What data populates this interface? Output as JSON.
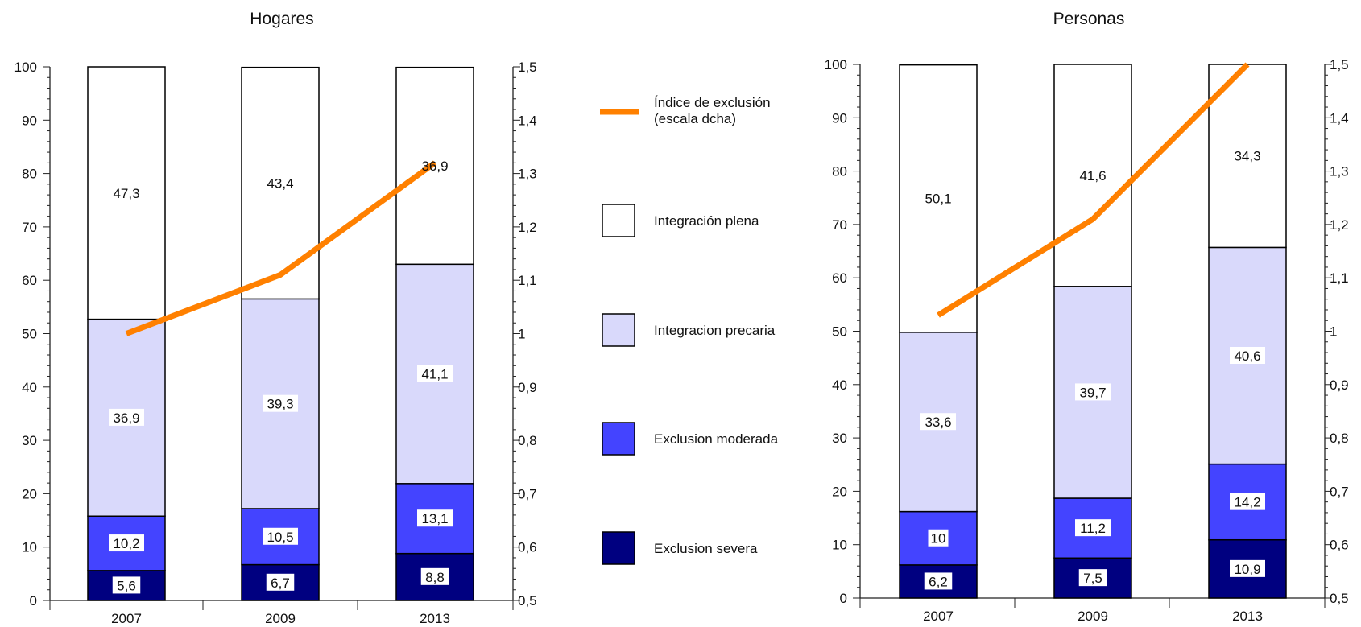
{
  "colors": {
    "integracion_plena": "#ffffff",
    "integracion_precaria": "#d9d9fb",
    "exclusion_moderada": "#4444ff",
    "exclusion_severa": "#000080",
    "indice": "#ff8000"
  },
  "legend": {
    "indice_line1": "Índice de exclusión",
    "indice_line2": "(escala dcha)",
    "plena": "Integración plena",
    "precaria": "Integracion precaria",
    "moderada": "Exclusion moderada",
    "severa": "Exclusion severa"
  },
  "chart_data": [
    {
      "type": "bar",
      "stacked": true,
      "title": "Hogares",
      "categories": [
        "2007",
        "2009",
        "2013"
      ],
      "ylim": [
        0,
        100
      ],
      "y2lim": [
        0.5,
        1.5
      ],
      "y_ticks": [
        "0",
        "10",
        "20",
        "30",
        "40",
        "50",
        "60",
        "70",
        "80",
        "90",
        "100"
      ],
      "y2_ticks": [
        "0,5",
        "0,6",
        "0,7",
        "0,8",
        "0,9",
        "1",
        "1,1",
        "1,2",
        "1,3",
        "1,4",
        "1,5"
      ],
      "series": [
        {
          "name": "Exclusion severa",
          "values": [
            5.6,
            6.7,
            8.8
          ],
          "labels": [
            "5,6",
            "6,7",
            "8,8"
          ]
        },
        {
          "name": "Exclusion moderada",
          "values": [
            10.2,
            10.5,
            13.1
          ],
          "labels": [
            "10,2",
            "10,5",
            "13,1"
          ]
        },
        {
          "name": "Integracion precaria",
          "values": [
            36.9,
            39.3,
            41.1
          ],
          "labels": [
            "36,9",
            "39,3",
            "41,1"
          ]
        },
        {
          "name": "Integración plena",
          "values": [
            47.3,
            43.4,
            36.9
          ],
          "labels": [
            "47,3",
            "43,4",
            "36,9"
          ]
        }
      ],
      "line": {
        "name": "Índice de exclusión",
        "axis": "right",
        "values": [
          1.0,
          1.11,
          1.32
        ]
      }
    },
    {
      "type": "bar",
      "stacked": true,
      "title": "Personas",
      "categories": [
        "2007",
        "2009",
        "2013"
      ],
      "ylim": [
        0,
        100
      ],
      "y2lim": [
        0.5,
        1.5
      ],
      "y_ticks": [
        "0",
        "10",
        "20",
        "30",
        "40",
        "50",
        "60",
        "70",
        "80",
        "90",
        "100"
      ],
      "y2_ticks": [
        "0,5",
        "0,6",
        "0,7",
        "0,8",
        "0,9",
        "1",
        "1,1",
        "1,2",
        "1,3",
        "1,4",
        "1,5"
      ],
      "series": [
        {
          "name": "Exclusion severa",
          "values": [
            6.2,
            7.5,
            10.9
          ],
          "labels": [
            "6,2",
            "7,5",
            "10,9"
          ]
        },
        {
          "name": "Exclusion moderada",
          "values": [
            10,
            11.2,
            14.2
          ],
          "labels": [
            "10",
            "11,2",
            "14,2"
          ]
        },
        {
          "name": "Integracion precaria",
          "values": [
            33.6,
            39.7,
            40.6
          ],
          "labels": [
            "33,6",
            "39,7",
            "40,6"
          ]
        },
        {
          "name": "Integración plena",
          "values": [
            50.1,
            41.6,
            34.3
          ],
          "labels": [
            "50,1",
            "41,6",
            "34,3"
          ]
        }
      ],
      "line": {
        "name": "Índice de exclusión",
        "axis": "right",
        "values": [
          1.03,
          1.21,
          1.5
        ]
      }
    }
  ]
}
